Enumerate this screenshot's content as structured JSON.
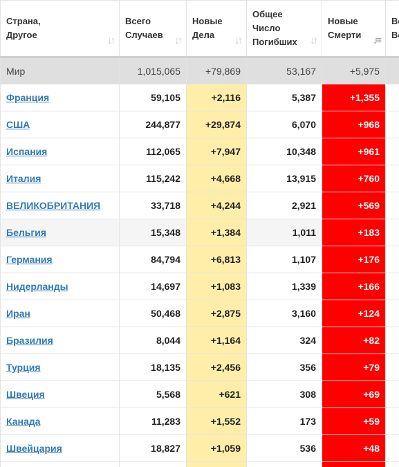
{
  "headers": {
    "country": [
      "Страна,",
      "Другое"
    ],
    "total_cases": [
      "Всего",
      "Случаев"
    ],
    "new_cases": [
      "Новые",
      "Дела"
    ],
    "total_deaths": [
      "Общее",
      "Число",
      "Погибших"
    ],
    "new_deaths": [
      "Новые",
      "Смерти"
    ],
    "extra": [
      "Вс",
      "Вс"
    ]
  },
  "icons": {
    "sort": "sort-arrows-icon",
    "sort_active": "sort-desc-icon"
  },
  "colors": {
    "new_cases_bg": "#ffeeaa",
    "new_deaths_bg": "#ff0000",
    "world_row_bg": "#dfdfdf",
    "link": "#337ab7"
  },
  "world": {
    "country": "Мир",
    "total_cases": "1,015,065",
    "new_cases": "+79,869",
    "total_deaths": "53,167",
    "new_deaths": "+5,975"
  },
  "rows": [
    {
      "country": "Франция",
      "total_cases": "59,105",
      "new_cases": "+2,116",
      "total_deaths": "5,387",
      "new_deaths": "+1,355"
    },
    {
      "country": "США",
      "total_cases": "244,877",
      "new_cases": "+29,874",
      "total_deaths": "6,070",
      "new_deaths": "+968"
    },
    {
      "country": "Испания",
      "total_cases": "112,065",
      "new_cases": "+7,947",
      "total_deaths": "10,348",
      "new_deaths": "+961"
    },
    {
      "country": "Италия",
      "total_cases": "115,242",
      "new_cases": "+4,668",
      "total_deaths": "13,915",
      "new_deaths": "+760"
    },
    {
      "country": "ВЕЛИКОБРИТАНИЯ",
      "total_cases": "33,718",
      "new_cases": "+4,244",
      "total_deaths": "2,921",
      "new_deaths": "+569"
    },
    {
      "country": "Бельгия",
      "total_cases": "15,348",
      "new_cases": "+1,384",
      "total_deaths": "1,011",
      "new_deaths": "+183"
    },
    {
      "country": "Германия",
      "total_cases": "84,794",
      "new_cases": "+6,813",
      "total_deaths": "1,107",
      "new_deaths": "+176"
    },
    {
      "country": "Нидерланды",
      "total_cases": "14,697",
      "new_cases": "+1,083",
      "total_deaths": "1,339",
      "new_deaths": "+166"
    },
    {
      "country": "Иран",
      "total_cases": "50,468",
      "new_cases": "+2,875",
      "total_deaths": "3,160",
      "new_deaths": "+124"
    },
    {
      "country": "Бразилия",
      "total_cases": "8,044",
      "new_cases": "+1,164",
      "total_deaths": "324",
      "new_deaths": "+82"
    },
    {
      "country": "Турция",
      "total_cases": "18,135",
      "new_cases": "+2,456",
      "total_deaths": "356",
      "new_deaths": "+79"
    },
    {
      "country": "Швеция",
      "total_cases": "5,568",
      "new_cases": "+621",
      "total_deaths": "308",
      "new_deaths": "+69"
    },
    {
      "country": "Канада",
      "total_cases": "11,283",
      "new_cases": "+1,552",
      "total_deaths": "173",
      "new_deaths": "+59"
    },
    {
      "country": "Швейцария",
      "total_cases": "18,827",
      "new_cases": "+1,059",
      "total_deaths": "536",
      "new_deaths": "+48"
    },
    {
      "country": "",
      "total_cases": "",
      "new_cases": "",
      "total_deaths": "",
      "new_deaths": ""
    }
  ]
}
